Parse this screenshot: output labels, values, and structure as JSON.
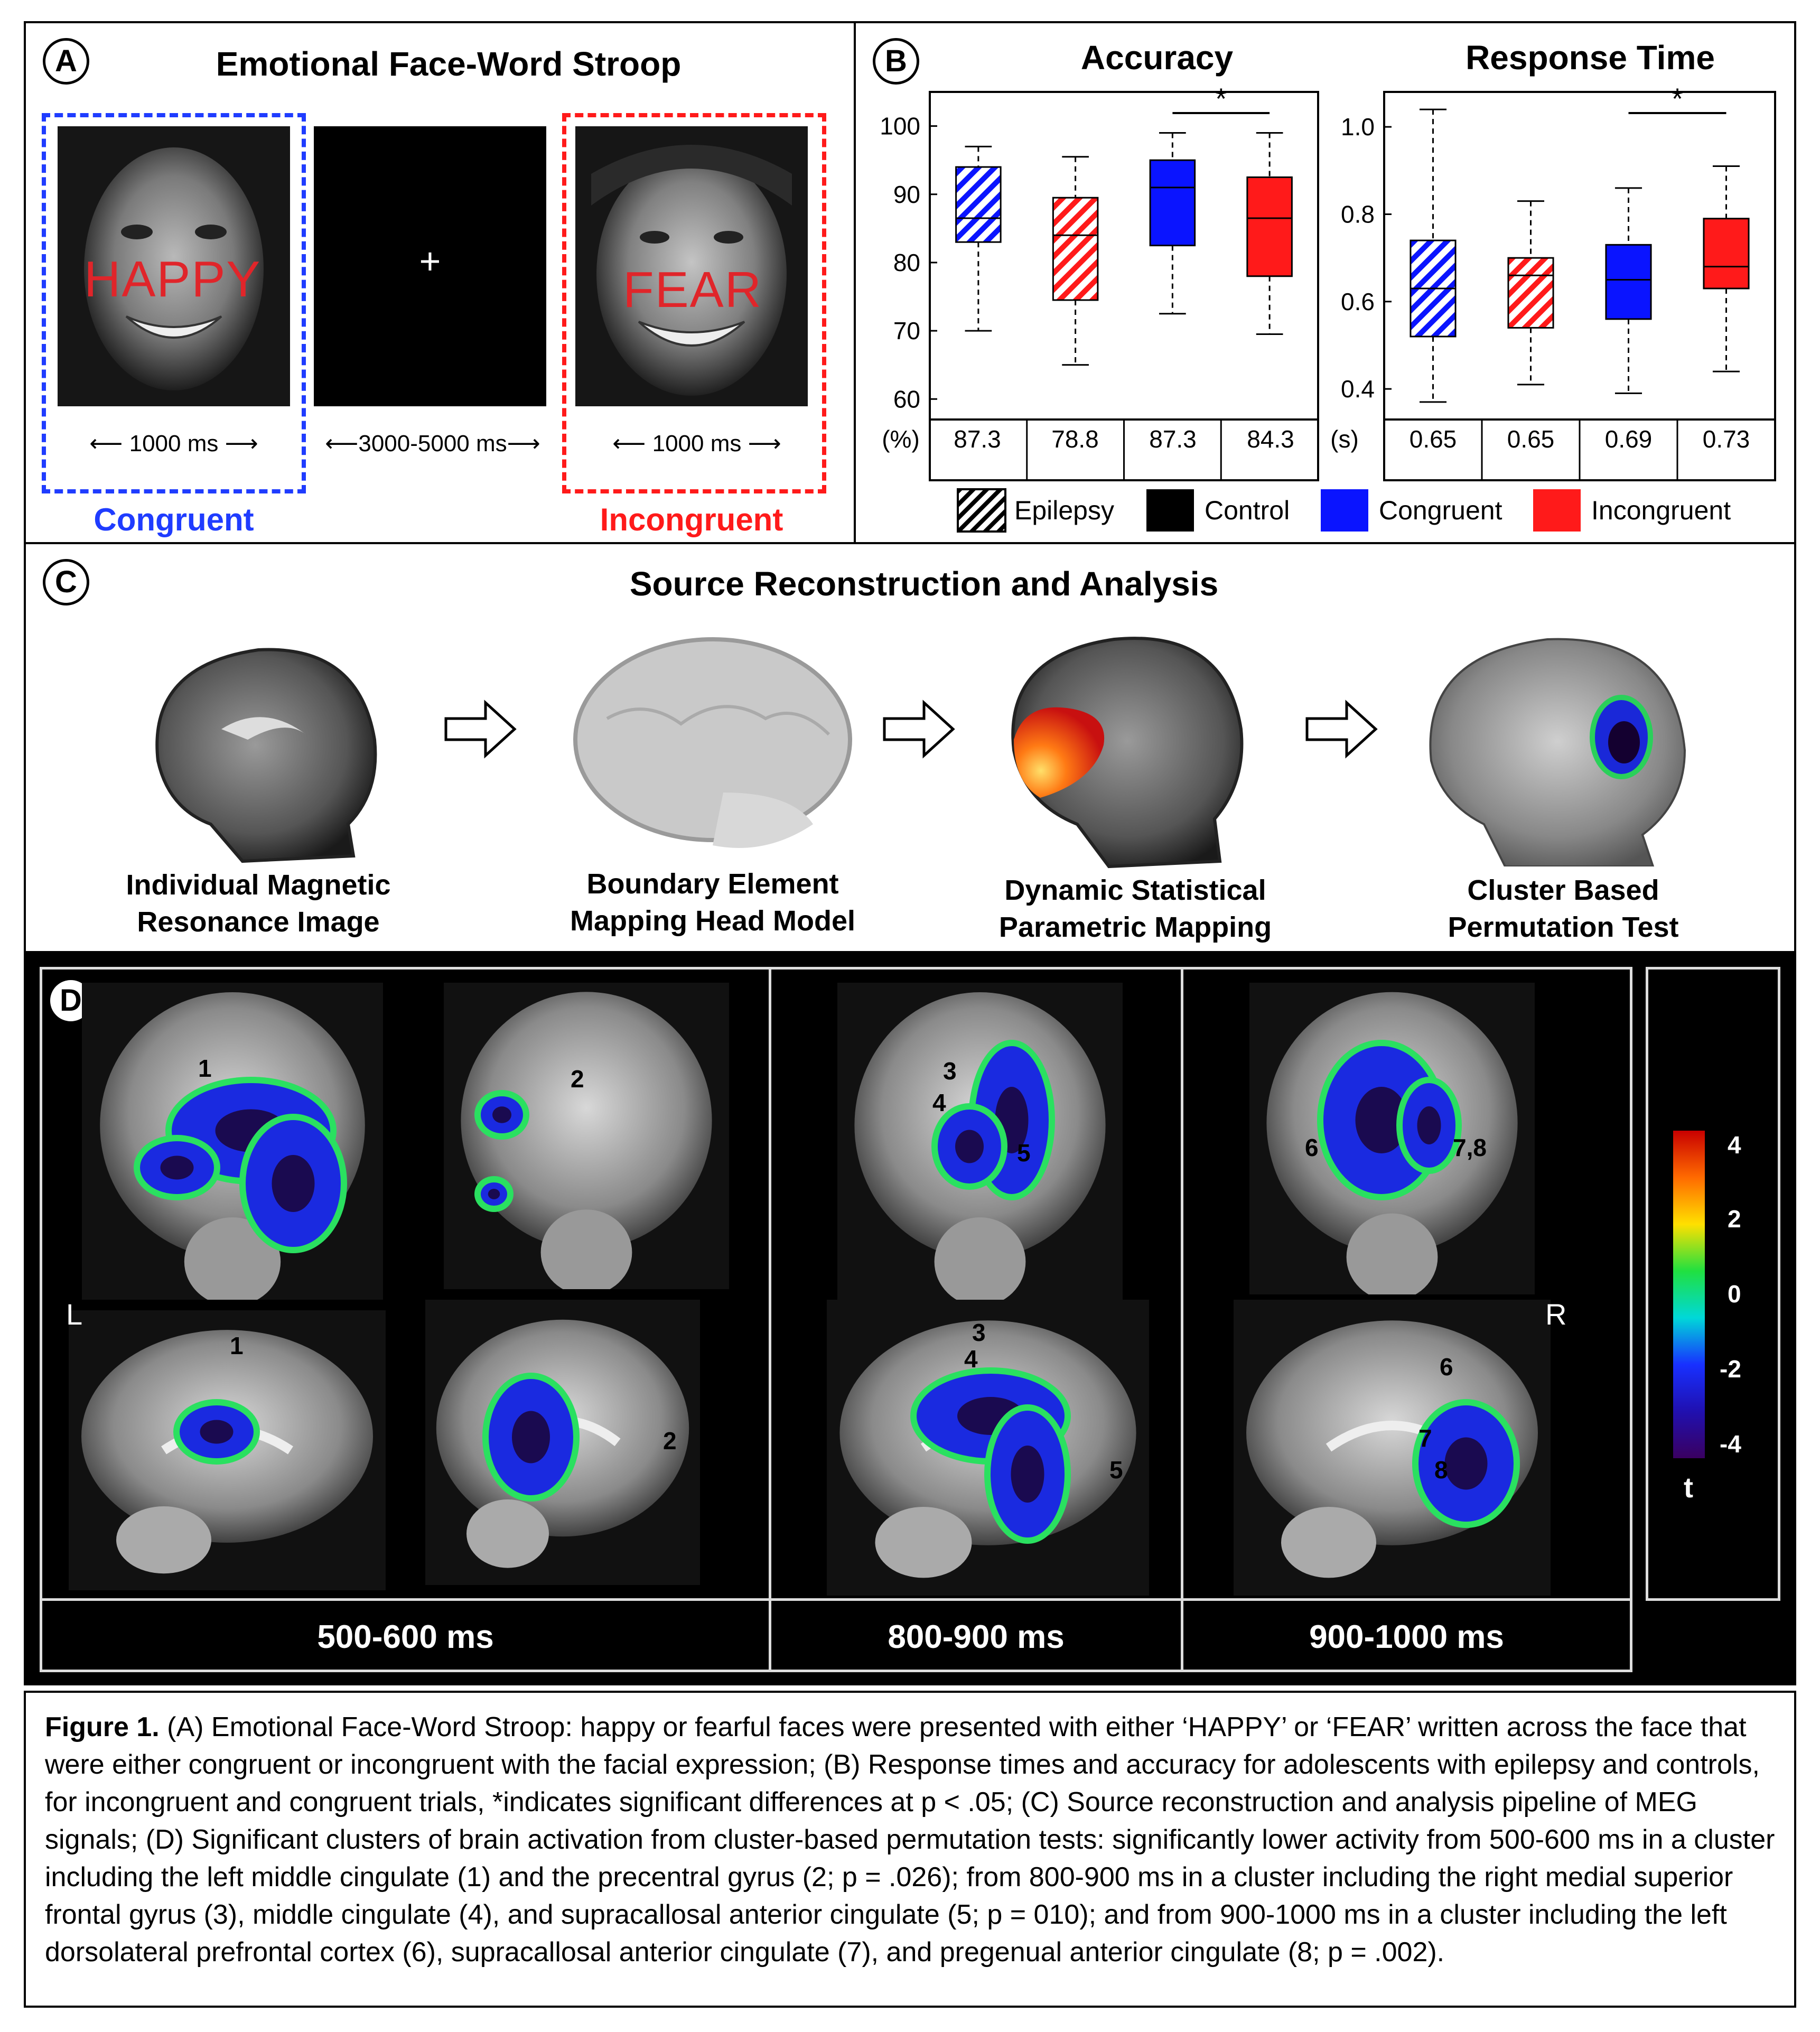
{
  "panel_a": {
    "letter": "A",
    "title": "Emotional Face-Word Stroop",
    "word_left": "HAPPY",
    "word_right": "FEAR",
    "fixation": "+",
    "timing_left": "1000 ms",
    "timing_mid": "3000-5000 ms",
    "timing_right": "1000 ms",
    "congruent": "Congruent",
    "incongruent": "Incongruent"
  },
  "panel_b": {
    "letter": "B",
    "accuracy_title": "Accuracy",
    "rt_title": "Response Time",
    "acc_unit": "(%)",
    "rt_unit": "(s)",
    "acc_ticks": [
      "100",
      "90",
      "80",
      "70",
      "60"
    ],
    "rt_ticks": [
      "1.0",
      "0.8",
      "0.6",
      "0.4"
    ],
    "acc_table": [
      "87.3",
      "78.8",
      "87.3",
      "84.3"
    ],
    "rt_table": [
      "0.65",
      "0.65",
      "0.69",
      "0.73"
    ],
    "sig": "*",
    "legend": {
      "epilepsy": "Epilepsy",
      "control": "Control",
      "congruent": "Congruent",
      "incongruent": "Incongruent"
    },
    "colors": {
      "congruent": "#0a14ff",
      "incongruent": "#ff1a1a"
    }
  },
  "chart_data": [
    {
      "type": "box",
      "title": "Accuracy",
      "ylim": [
        57,
        105
      ],
      "yticks": [
        60,
        70,
        80,
        90,
        100
      ],
      "categories": [
        "Epilepsy Congruent",
        "Epilepsy Incongruent",
        "Control Congruent",
        "Control Incongruent"
      ],
      "boxes": [
        {
          "min": 70,
          "q1": 83,
          "median": 86.5,
          "q3": 94,
          "max": 97
        },
        {
          "min": 65,
          "q1": 74.5,
          "median": 84,
          "q3": 89.5,
          "max": 95.5
        },
        {
          "min": 72.5,
          "q1": 82.5,
          "median": 91,
          "q3": 95,
          "max": 99
        },
        {
          "min": 69.5,
          "q1": 78,
          "median": 86.5,
          "q3": 92.5,
          "max": 99
        }
      ],
      "means": [
        87.3,
        78.8,
        87.3,
        84.3
      ]
    },
    {
      "type": "box",
      "title": "Response Time",
      "ylim": [
        0.33,
        1.08
      ],
      "yticks": [
        0.4,
        0.6,
        0.8,
        1.0
      ],
      "categories": [
        "Epilepsy Congruent",
        "Epilepsy Incongruent",
        "Control Congruent",
        "Control Incongruent"
      ],
      "boxes": [
        {
          "min": 0.37,
          "q1": 0.52,
          "median": 0.63,
          "q3": 0.74,
          "max": 1.04
        },
        {
          "min": 0.41,
          "q1": 0.54,
          "median": 0.66,
          "q3": 0.7,
          "max": 0.83
        },
        {
          "min": 0.39,
          "q1": 0.56,
          "median": 0.65,
          "q3": 0.73,
          "max": 0.86
        },
        {
          "min": 0.44,
          "q1": 0.63,
          "median": 0.68,
          "q3": 0.79,
          "max": 0.91
        }
      ],
      "means": [
        0.65,
        0.65,
        0.69,
        0.73
      ]
    }
  ],
  "panel_c": {
    "letter": "C",
    "title": "Source Reconstruction and Analysis",
    "steps": [
      {
        "l1": "Individual Magnetic",
        "l2": "Resonance Image"
      },
      {
        "l1": "Boundary Element",
        "l2": "Mapping Head Model"
      },
      {
        "l1": "Dynamic Statistical",
        "l2": "Parametric Mapping"
      },
      {
        "l1": "Cluster Based",
        "l2": "Permutation Test"
      }
    ]
  },
  "panel_d": {
    "letter": "D",
    "left": "L",
    "right": "R",
    "times": [
      "500-600 ms",
      "800-900 ms",
      "900-1000 ms"
    ],
    "colorbar": [
      "4",
      "2",
      "0",
      "-2",
      "-4"
    ],
    "colorbar_label": "t",
    "labels": {
      "n1": "1",
      "n2": "2",
      "n3": "3",
      "n4": "4",
      "n5": "5",
      "n6": "6",
      "n78": "7,8",
      "n7": "7",
      "n8": "8"
    }
  },
  "caption": {
    "label": "Figure 1.",
    "text": " (A) Emotional Face-Word Stroop: happy or fearful faces were presented with either ‘HAPPY’ or ‘FEAR’ written across the face that were either congruent or incongruent with the facial expression; (B) Response times and accuracy for adolescents with epilepsy and controls, for incongruent and congruent trials, *indicates significant differences at p < .05; (C) Source reconstruction and analysis pipeline of MEG signals; (D) Significant clusters of brain activation from cluster-based permutation tests: significantly lower activity from 500-600 ms in a cluster including the left middle cingulate (1) and the precentral gyrus (2; p = .026); from 800-900 ms in a cluster including the right medial superior frontal gyrus (3), middle cingulate (4), and supracallosal anterior cingulate (5; p = 010); and from 900-1000 ms in a cluster including the left dorsolateral prefrontal cortex (6), supracallosal anterior cingulate (7), and pregenual anterior cingulate (8; p = .002)."
  }
}
